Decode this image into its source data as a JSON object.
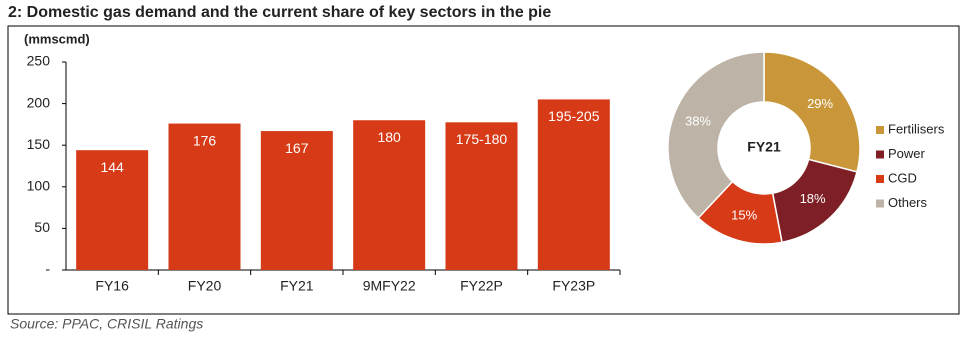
{
  "title": "2: Domestic gas demand and the current share of key sectors in the pie",
  "source": "Source: PPAC, CRISIL Ratings",
  "chart_data": [
    {
      "type": "bar",
      "y_label": "(mmscmd)",
      "categories": [
        "FY16",
        "FY20",
        "FY21",
        "9MFY22",
        "FY22P",
        "FY23P"
      ],
      "values": [
        144,
        176,
        167,
        180,
        177.5,
        205
      ],
      "value_labels": [
        "144",
        "176",
        "167",
        "180",
        "175-180",
        "195-205"
      ],
      "color": "#d63a17",
      "ylim": [
        0,
        250
      ],
      "yticks": [
        {
          "value": 0,
          "label": "-"
        },
        50,
        100,
        150,
        200,
        250
      ]
    },
    {
      "type": "pie",
      "center_label": "FY21",
      "categories": [
        "Fertilisers",
        "Power",
        "CGD",
        "Others"
      ],
      "values": [
        29,
        18,
        15,
        38
      ],
      "value_labels": [
        "29%",
        "18%",
        "15%",
        "38%"
      ],
      "colors": [
        "#c9973a",
        "#7d1f24",
        "#d63a17",
        "#bdb3a6"
      ]
    }
  ]
}
